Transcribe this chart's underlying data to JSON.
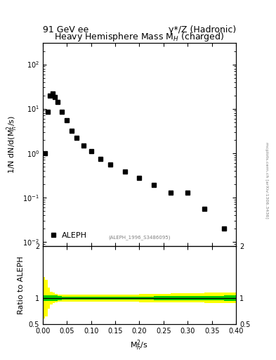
{
  "title_top_left": "91 GeV ee",
  "title_top_right": "γ*/Z (Hadronic)",
  "plot_title": "Heavy Hemisphere Mass M$_H$ (charged)",
  "ylabel_main": "1/N dN/d(M$^2_h$/s)",
  "ylabel_ratio": "Ratio to ALEPH",
  "xlabel": "M$^2_h$/s",
  "legend_label": "ALEPH",
  "watermark": "(ALEPH_1996_S3486095)",
  "side_text": "mcplots.cern.ch [arXiv:1306.3436]",
  "data_x": [
    0.005,
    0.01,
    0.015,
    0.02,
    0.025,
    0.03,
    0.04,
    0.05,
    0.06,
    0.07,
    0.085,
    0.1,
    0.12,
    0.14,
    0.17,
    0.2,
    0.23,
    0.265,
    0.3,
    0.335,
    0.375
  ],
  "data_y": [
    1.0,
    8.5,
    20.0,
    22.0,
    18.0,
    14.0,
    8.5,
    5.5,
    3.2,
    2.2,
    1.5,
    1.1,
    0.75,
    0.55,
    0.38,
    0.27,
    0.19,
    0.13,
    0.13,
    0.055,
    0.02
  ],
  "xlim": [
    0.0,
    0.4
  ],
  "ylim_main": [
    0.008,
    300
  ],
  "ylim_ratio": [
    0.5,
    2.0
  ],
  "ratio_x": [
    0.0,
    0.005,
    0.01,
    0.015,
    0.02,
    0.025,
    0.03,
    0.04,
    0.05,
    0.06,
    0.07,
    0.085,
    0.1,
    0.12,
    0.14,
    0.17,
    0.2,
    0.23,
    0.265,
    0.3,
    0.335,
    0.375,
    0.4
  ],
  "ratio_green_upper": [
    1.05,
    1.05,
    1.05,
    1.05,
    1.05,
    1.05,
    1.04,
    1.03,
    1.03,
    1.03,
    1.03,
    1.03,
    1.03,
    1.03,
    1.03,
    1.03,
    1.03,
    1.04,
    1.04,
    1.04,
    1.04,
    1.05,
    1.05
  ],
  "ratio_green_lower": [
    0.95,
    0.95,
    0.95,
    0.95,
    0.95,
    0.95,
    0.96,
    0.97,
    0.97,
    0.97,
    0.97,
    0.97,
    0.97,
    0.97,
    0.97,
    0.97,
    0.97,
    0.96,
    0.96,
    0.96,
    0.96,
    0.95,
    0.95
  ],
  "ratio_yellow_upper": [
    1.4,
    1.35,
    1.2,
    1.12,
    1.1,
    1.08,
    1.07,
    1.07,
    1.07,
    1.07,
    1.07,
    1.07,
    1.07,
    1.07,
    1.07,
    1.07,
    1.08,
    1.08,
    1.09,
    1.09,
    1.1,
    1.1,
    1.1
  ],
  "ratio_yellow_lower": [
    0.6,
    0.65,
    0.8,
    0.88,
    0.9,
    0.92,
    0.93,
    0.93,
    0.93,
    0.93,
    0.93,
    0.93,
    0.93,
    0.93,
    0.93,
    0.93,
    0.92,
    0.92,
    0.91,
    0.91,
    0.9,
    0.9,
    0.9
  ],
  "marker_color": "black",
  "marker_style": "s",
  "marker_size": 4,
  "background_color": "white",
  "green_color": "#00cc00",
  "yellow_color": "#ffff00",
  "ratio_line_color": "black",
  "title_fontsize": 9,
  "axis_fontsize": 8,
  "tick_fontsize": 7,
  "header_fontsize": 9
}
